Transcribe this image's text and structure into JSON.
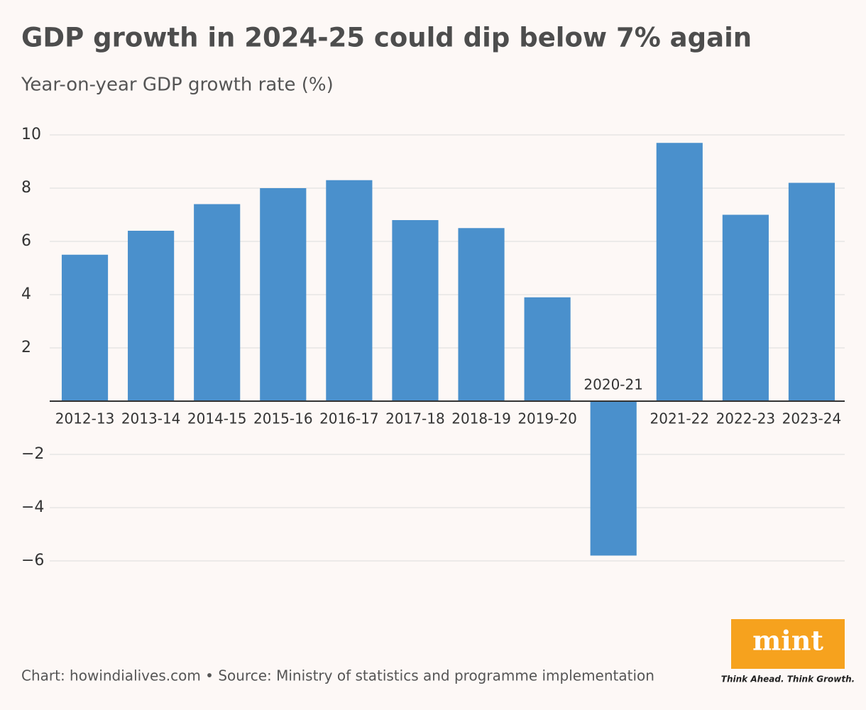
{
  "chart_data": {
    "type": "bar",
    "title": "GDP growth in 2024-25 could dip below 7% again",
    "subtitle": "Year-on-year GDP growth rate (%)",
    "categories": [
      "2012-13",
      "2013-14",
      "2014-15",
      "2015-16",
      "2016-17",
      "2017-18",
      "2018-19",
      "2019-20",
      "2020-21",
      "2021-22",
      "2022-23",
      "2023-24"
    ],
    "values": [
      5.5,
      6.4,
      7.4,
      8.0,
      8.3,
      6.8,
      6.5,
      3.9,
      -5.8,
      9.7,
      7.0,
      8.2
    ],
    "color": "#4a90cc",
    "ylim": [
      -6,
      10
    ],
    "yticks": [
      {
        "value": -6,
        "label": "−6"
      },
      {
        "value": -4,
        "label": "−4"
      },
      {
        "value": -2,
        "label": "−2"
      },
      2,
      4,
      6,
      8,
      10
    ],
    "grid": true,
    "source": "Chart: howindialives.com • Source: Ministry of statistics and programme implementation"
  },
  "brand": {
    "name": "mint",
    "tagline": "Think Ahead. Think Growth."
  }
}
